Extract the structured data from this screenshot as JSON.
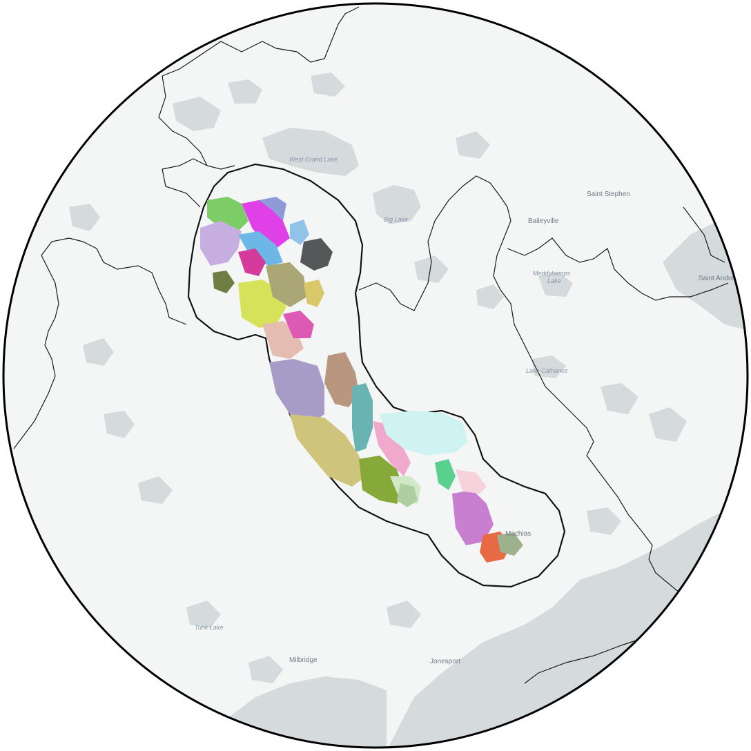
{
  "map": {
    "colors": {
      "land": "#f4f5f5",
      "land_alt": "#e9ebeb",
      "water": "#d5dadd",
      "outline": "#111111",
      "border": "#1a1a1a",
      "frame": "#000000"
    },
    "place_labels": [
      {
        "id": "saint-stephen",
        "text": "Saint Stephen"
      },
      {
        "id": "baileyville",
        "text": "Baileyville"
      },
      {
        "id": "saint-andrews",
        "text": "Saint Andrews"
      },
      {
        "id": "milbridge",
        "text": "Milbridge"
      },
      {
        "id": "jonesport",
        "text": "Jonesport"
      },
      {
        "id": "machias",
        "text": "Machias"
      }
    ],
    "water_labels": [
      {
        "id": "west-grand-lake",
        "text": "West Grand Lake"
      },
      {
        "id": "big-lake",
        "text": "Big Lake"
      },
      {
        "id": "meddybemps-lake-1",
        "text": "Meddybemps"
      },
      {
        "id": "meddybemps-lake-2",
        "text": "Lake"
      },
      {
        "id": "lake-cathance",
        "text": "Lake Cathance"
      },
      {
        "id": "tunk-lake",
        "text": "Tunk Lake"
      }
    ],
    "watershed_colors": [
      "#7ccd68",
      "#c7aee0",
      "#e040e8",
      "#8f9bd6",
      "#555759",
      "#6cb7e6",
      "#d33a9a",
      "#d6e35a",
      "#aaa675",
      "#e5bcb0",
      "#a69cc7",
      "#b9977f",
      "#6ab3b3",
      "#cfc47c",
      "#86a93a",
      "#d2e9c8",
      "#f0a9cc",
      "#c87fcf",
      "#e86a45",
      "#9db28c",
      "#cff2f2",
      "#59d08e",
      "#6f7f44",
      "#d9c86a",
      "#dc5ab4",
      "#8fc3e8",
      "#f7d2dd",
      "#b0cfa0"
    ]
  }
}
